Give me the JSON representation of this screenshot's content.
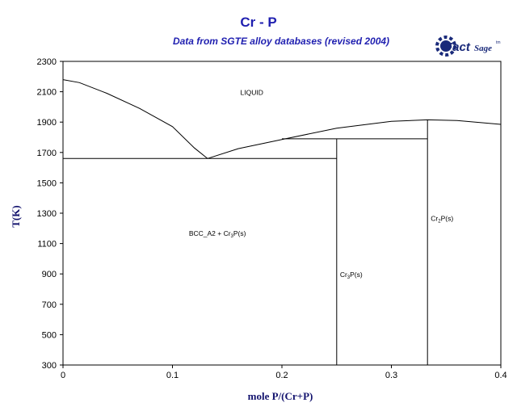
{
  "header": {
    "title": "Cr - P",
    "subtitle": "Data from SGTE alloy databases (revised 2004)"
  },
  "logo": {
    "text_main": "Fact",
    "text_tail": "Sage",
    "mark": "tm"
  },
  "colors": {
    "title": "#1f1fb0",
    "axis_title": "#13136e",
    "line": "#000000",
    "logo": "#1a2a7a"
  },
  "chart_data": {
    "type": "line",
    "title": "Cr - P",
    "subtitle": "Data from SGTE alloy databases (revised 2004)",
    "xlabel": "mole P/(Cr+P)",
    "ylabel": "T(K)",
    "xlim": [
      0,
      0.4
    ],
    "ylim": [
      300,
      2300
    ],
    "grid": false,
    "x_ticks": [
      0,
      0.1,
      0.2,
      0.3,
      0.4
    ],
    "x_tick_labels": [
      "0",
      "0.1",
      "0.2",
      "0.3",
      "0.4"
    ],
    "y_ticks": [
      300,
      500,
      700,
      900,
      1100,
      1300,
      1500,
      1700,
      1900,
      2100,
      2300
    ],
    "y_tick_labels": [
      "300",
      "500",
      "700",
      "900",
      "1100",
      "1300",
      "1500",
      "1700",
      "1900",
      "2100",
      "2300"
    ],
    "series": [
      {
        "values": [
          [
            0,
            2180
          ],
          [
            0.015,
            2160
          ],
          [
            0.04,
            2090
          ],
          [
            0.07,
            1990
          ],
          [
            0.1,
            1870
          ],
          [
            0.12,
            1730
          ],
          [
            0.132,
            1660
          ]
        ]
      },
      {
        "values": [
          [
            0.132,
            1660
          ],
          [
            0.16,
            1725
          ],
          [
            0.2,
            1785
          ],
          [
            0.25,
            1860
          ],
          [
            0.3,
            1905
          ],
          [
            0.333,
            1915
          ],
          [
            0.36,
            1910
          ],
          [
            0.4,
            1885
          ]
        ]
      },
      {
        "values": [
          [
            0,
            1660
          ],
          [
            0.25,
            1660
          ]
        ]
      },
      {
        "values": [
          [
            0.2,
            1790
          ],
          [
            0.333,
            1790
          ]
        ]
      },
      {
        "values": [
          [
            0.25,
            300
          ],
          [
            0.25,
            1790
          ]
        ]
      },
      {
        "values": [
          [
            0.333,
            300
          ],
          [
            0.333,
            1915
          ]
        ]
      }
    ],
    "annotations": [
      {
        "x": 0.162,
        "y": 2080,
        "parts": [
          [
            "LIQUID",
            "n"
          ]
        ]
      },
      {
        "x": 0.115,
        "y": 1150,
        "parts": [
          [
            "BCC_A2 + Cr",
            "n"
          ],
          [
            "3",
            "s"
          ],
          [
            "P(s)",
            "n"
          ]
        ]
      },
      {
        "x": 0.253,
        "y": 880,
        "parts": [
          [
            "Cr",
            "n"
          ],
          [
            "3",
            "s"
          ],
          [
            "P(s)",
            "n"
          ]
        ]
      },
      {
        "x": 0.336,
        "y": 1250,
        "parts": [
          [
            "Cr",
            "n"
          ],
          [
            "2",
            "s"
          ],
          [
            "P(s)",
            "n"
          ]
        ]
      }
    ]
  }
}
